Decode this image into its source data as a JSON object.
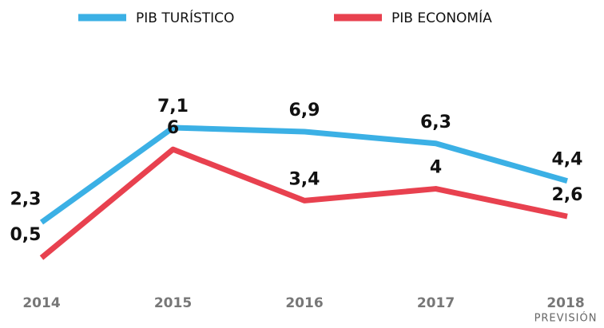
{
  "chart_data": {
    "type": "line",
    "categories": [
      "2014",
      "2015",
      "2016",
      "2017",
      "2018"
    ],
    "series": [
      {
        "name": "PIB TURÍSTICO",
        "color": "#3bb0e5",
        "values": [
          2.3,
          7.1,
          6.9,
          6.3,
          4.4
        ],
        "value_labels": [
          "2,3",
          "7,1",
          "6,9",
          "6,3",
          "4,4"
        ]
      },
      {
        "name": "PIB ECONOMÍA",
        "color": "#e8414f",
        "values": [
          0.5,
          6,
          3.4,
          4,
          2.6
        ],
        "value_labels": [
          "0,5",
          "6",
          "3,4",
          "4",
          "2,6"
        ]
      }
    ],
    "annotations": [
      "PREVISIÓN"
    ]
  }
}
